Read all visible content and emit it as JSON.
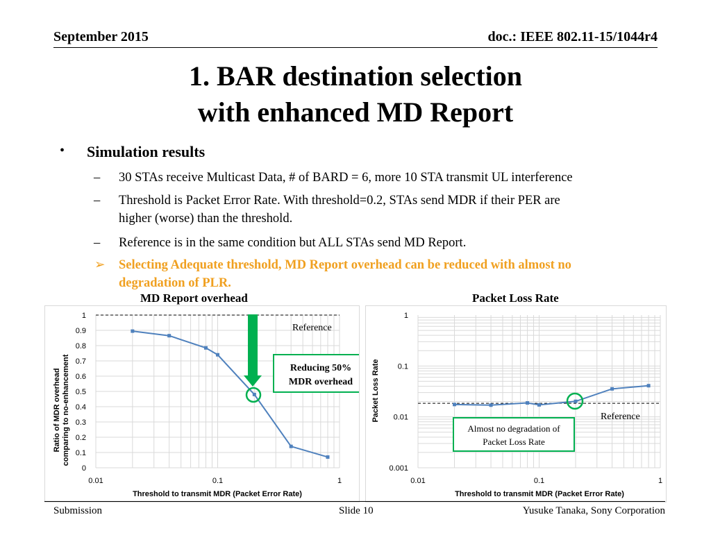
{
  "header": {
    "date": "September 2015",
    "doc_id": "doc.: IEEE 802.11-15/1044r4"
  },
  "title": {
    "line1": "1. BAR destination selection",
    "line2": "with enhanced MD Report"
  },
  "bullets": {
    "marker": "•",
    "main": "Simulation results",
    "dash": "–",
    "arrow": "➢",
    "sub1": "30 STAs receive Multicast Data, # of BARD = 6, more 10 STA transmit UL interference",
    "sub2_line1": "Threshold is Packet Error Rate. With threshold=0.2, STAs send MDR if their PER are",
    "sub2_line2": "higher (worse) than the threshold.",
    "sub3": "Reference is in the same condition but ALL STAs send MD Report.",
    "highlight_line1": "Selecting Adequate threshold, MD Report overhead can be reduced with almost no",
    "highlight_line2": "degradation of PLR."
  },
  "charts": {
    "left": {
      "title": "MD Report overhead",
      "reference_label": "Reference",
      "callout_line1": "Reducing 50%",
      "callout_line2": "MDR overhead",
      "xlabel": "Threshold to transmit MDR (Packet Error Rate)",
      "ylabel_line1": "Ratio of MDR overhead",
      "ylabel_line2": "comparing to no-enhancement"
    },
    "right": {
      "title": "Packet Loss Rate",
      "reference_label": "Reference",
      "callout_line1": "Almost no degradation of",
      "callout_line2": "Packet Loss Rate",
      "xlabel": "Threshold to transmit MDR (Packet Error Rate)",
      "ylabel": "Packet Loss Rate"
    }
  },
  "footer": {
    "left": "Submission",
    "center": "Slide 10",
    "right": "Yusuke Tanaka, Sony Corporation"
  },
  "colors": {
    "series": "#4f81bd",
    "highlight_text": "#f0a020",
    "green": "#00b050",
    "grid": "#d9d9d9"
  },
  "chart_data": [
    {
      "type": "line",
      "title": "MD Report overhead",
      "xlabel": "Threshold to transmit MDR (Packet Error Rate)",
      "ylabel": "Ratio of MDR overhead comparing to no-enhancement",
      "x_scale": "log",
      "xlim": [
        0.01,
        1
      ],
      "ylim": [
        0,
        1
      ],
      "x_ticks": [
        "0.01",
        "0.1",
        "1"
      ],
      "y_ticks": [
        "0",
        "0.1",
        "0.2",
        "0.3",
        "0.4",
        "0.5",
        "0.6",
        "0.7",
        "0.8",
        "0.9",
        "1"
      ],
      "grid": true,
      "series": [
        {
          "x": [
            0.02,
            0.04,
            0.08,
            0.1,
            0.2,
            0.4,
            0.8
          ],
          "y": [
            0.895,
            0.865,
            0.785,
            0.74,
            0.48,
            0.14,
            0.07
          ]
        }
      ],
      "reference_y": 1
    },
    {
      "type": "line",
      "title": "Packet Loss Rate",
      "xlabel": "Threshold to transmit MDR (Packet Error Rate)",
      "ylabel": "Packet Loss Rate",
      "x_scale": "log",
      "y_scale": "log",
      "xlim": [
        0.01,
        1
      ],
      "ylim": [
        0.001,
        1
      ],
      "x_ticks": [
        "0.01",
        "0.1",
        "1"
      ],
      "y_ticks": [
        "0.001",
        "0.01",
        "0.1",
        "1"
      ],
      "grid": true,
      "series": [
        {
          "x": [
            0.02,
            0.04,
            0.08,
            0.1,
            0.2,
            0.4,
            0.8
          ],
          "y": [
            0.0175,
            0.017,
            0.0188,
            0.0172,
            0.0202,
            0.0355,
            0.041
          ]
        }
      ],
      "reference_y": 0.0185
    }
  ]
}
